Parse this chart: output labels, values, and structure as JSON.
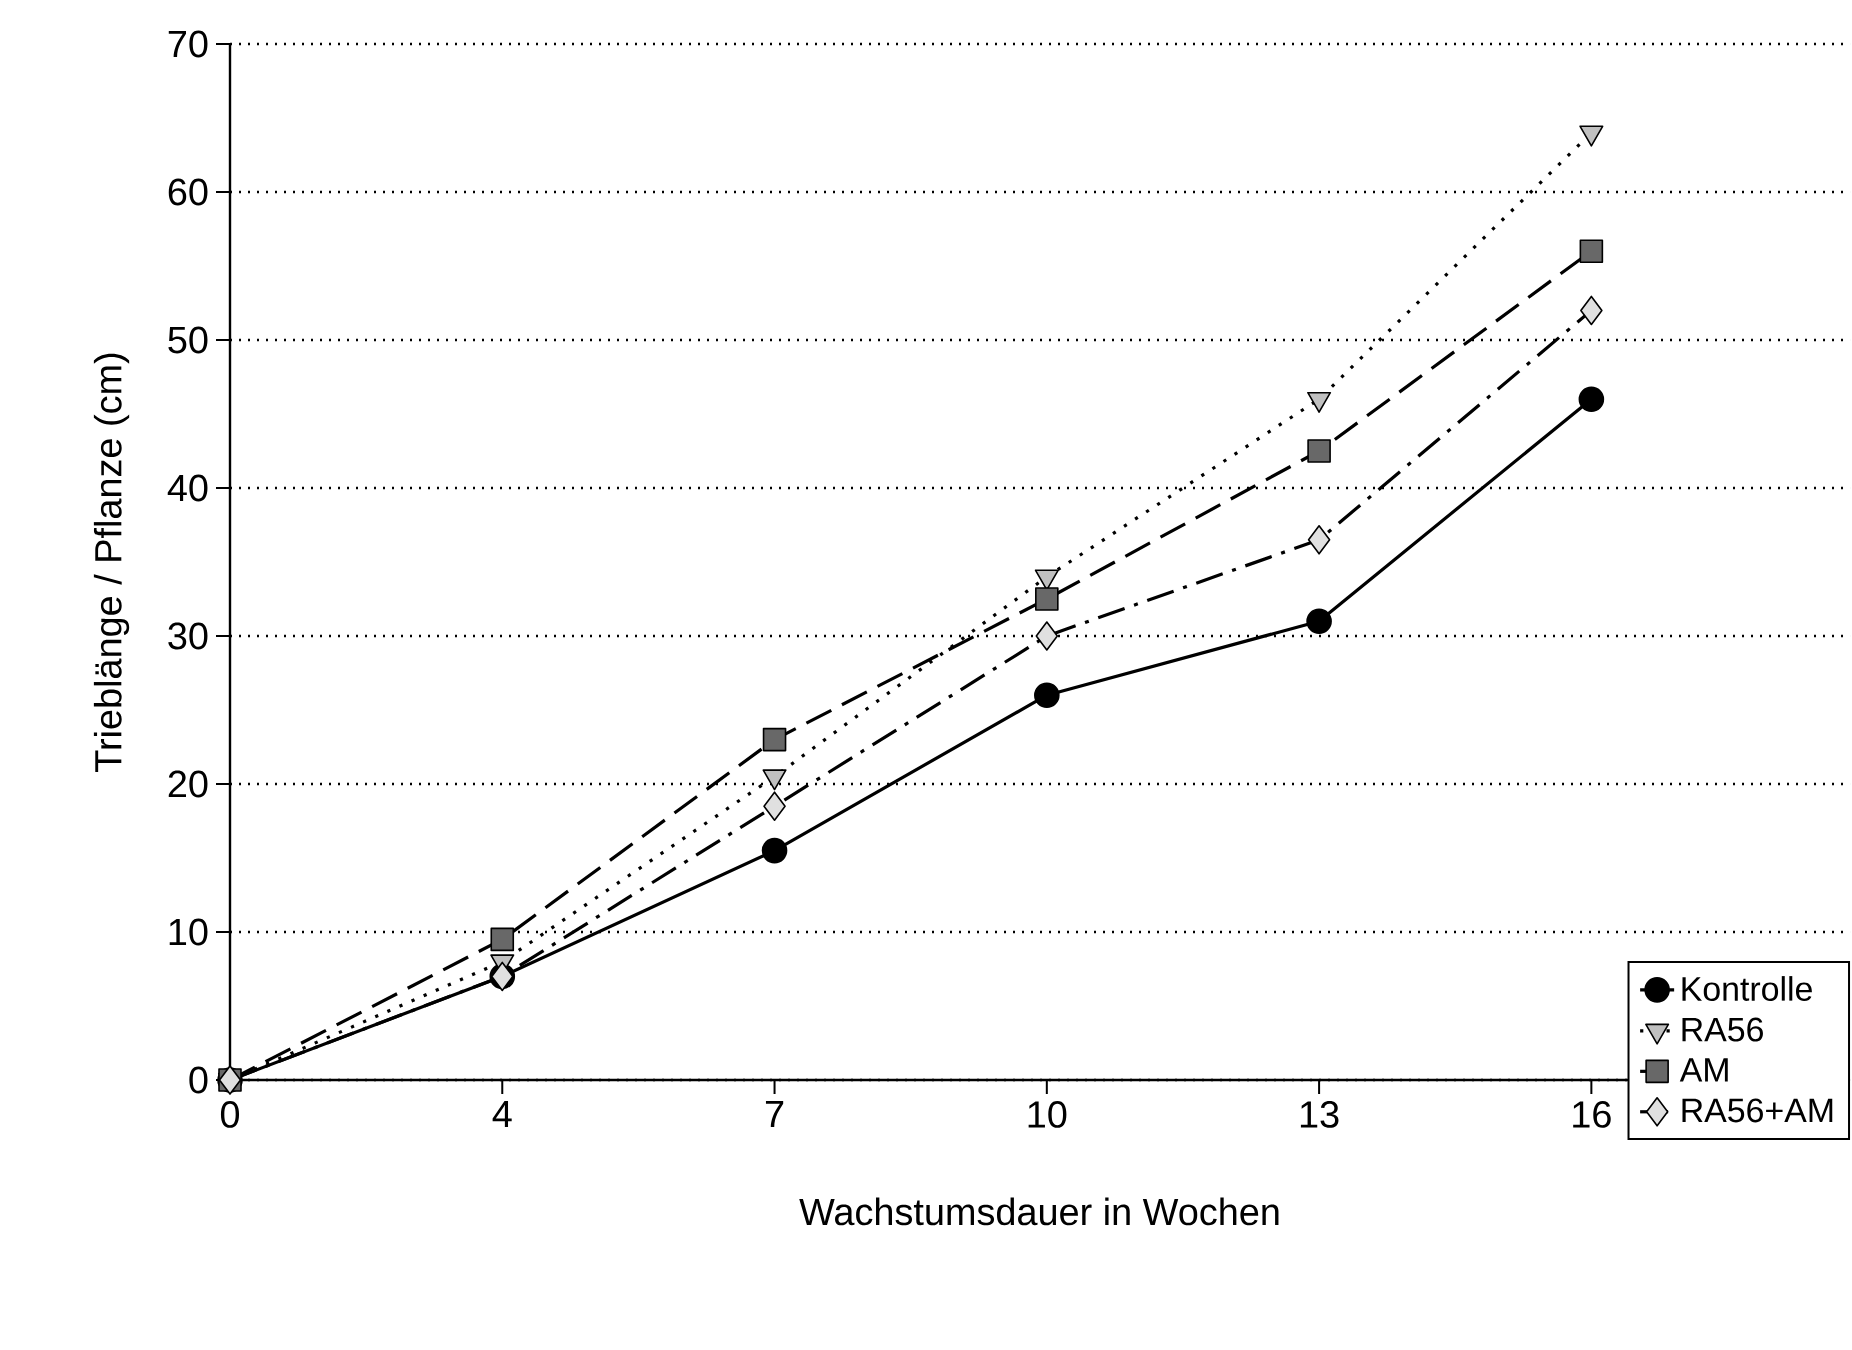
{
  "chart_data": {
    "type": "line",
    "xlabel": "Wachstumsdauer in Wochen",
    "ylabel": "Trieblänge / Pflanze (cm)",
    "categories": [
      "0",
      "4",
      "7",
      "10",
      "13",
      "16"
    ],
    "series": [
      {
        "name": "Kontrolle",
        "color": "#000000",
        "marker": "circle",
        "line_style": "solid",
        "values": [
          0,
          7,
          15.5,
          26,
          31,
          46
        ]
      },
      {
        "name": "RA56",
        "color": "#c0c0c0",
        "marker": "triangle",
        "line_style": "dotted",
        "values": [
          0,
          8,
          20.5,
          34,
          46,
          64
        ]
      },
      {
        "name": "AM",
        "color": "#686868",
        "marker": "square",
        "line_style": "dashed",
        "values": [
          0,
          9.5,
          23,
          32.5,
          42.5,
          56
        ]
      },
      {
        "name": "RA56+AM",
        "color": "#e0e0e0",
        "marker": "diamond",
        "line_style": "dashdot",
        "values": [
          0,
          7,
          18.5,
          30,
          36.5,
          52
        ]
      }
    ],
    "ylim": [
      0,
      70
    ],
    "yticks": [
      0,
      10,
      20,
      30,
      40,
      50,
      60,
      70
    ],
    "grid": "y",
    "legend": "bottom right"
  }
}
